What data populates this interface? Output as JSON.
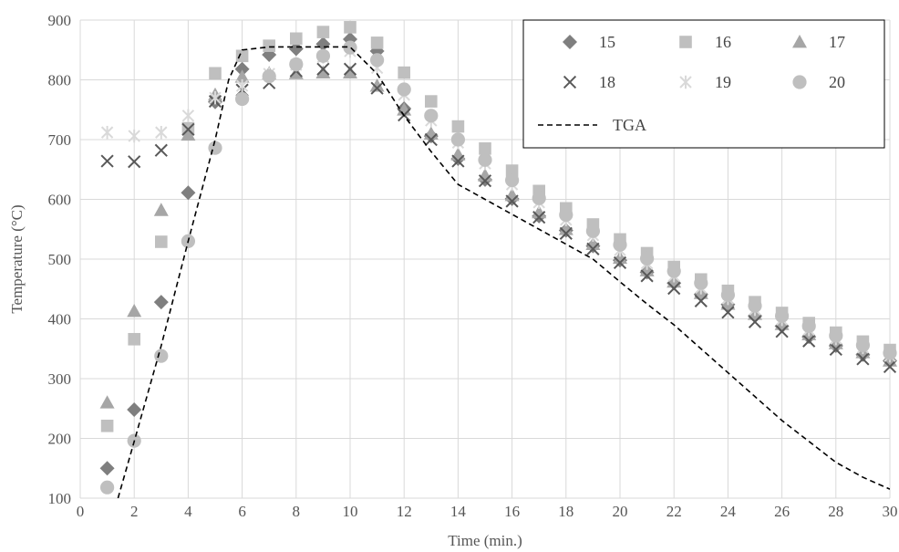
{
  "chart_data": {
    "type": "scatter",
    "title": "",
    "xlabel": "Time (min.)",
    "ylabel": "Temperature (°C)",
    "xlim": [
      0,
      30
    ],
    "ylim": [
      100,
      900
    ],
    "x_ticks": [
      0,
      2,
      4,
      6,
      8,
      10,
      12,
      14,
      16,
      18,
      20,
      22,
      24,
      26,
      28,
      30
    ],
    "y_ticks": [
      100,
      200,
      300,
      400,
      500,
      600,
      700,
      800,
      900
    ],
    "grid": true,
    "legend_position": "top-right",
    "series": [
      {
        "name": "15",
        "marker": "diamond",
        "color": "#7f7f7f",
        "x": [
          1,
          2,
          3,
          4,
          5,
          6,
          7,
          8,
          9,
          10,
          11,
          12,
          13,
          14,
          15,
          16,
          17,
          18,
          19,
          20,
          21,
          22,
          23,
          24,
          25,
          26,
          27,
          28,
          29,
          30
        ],
        "y": [
          150,
          248,
          428,
          611,
          763,
          818,
          842,
          852,
          860,
          868,
          848,
          752,
          706,
          668,
          633,
          601,
          572,
          548,
          522,
          498,
          478,
          460,
          441,
          424,
          405,
          388,
          370,
          355,
          340,
          330
        ]
      },
      {
        "name": "16",
        "marker": "square",
        "color": "#bfbfbf",
        "x": [
          1,
          2,
          3,
          4,
          5,
          6,
          7,
          8,
          9,
          10,
          11,
          12,
          13,
          14,
          15,
          16,
          17,
          18,
          19,
          20,
          21,
          22,
          23,
          24,
          25,
          26,
          27,
          28,
          29,
          30
        ],
        "y": [
          221,
          366,
          529,
          719,
          811,
          840,
          857,
          869,
          880,
          888,
          862,
          812,
          764,
          722,
          685,
          648,
          614,
          585,
          558,
          533,
          510,
          487,
          466,
          447,
          428,
          410,
          393,
          377,
          362,
          348
        ]
      },
      {
        "name": "17",
        "marker": "triangle",
        "color": "#a6a6a6",
        "x": [
          1,
          2,
          3,
          4,
          5,
          6,
          7,
          8,
          9,
          10,
          11,
          12,
          13,
          14,
          15,
          16,
          17,
          18,
          19,
          20,
          21,
          22,
          23,
          24,
          25,
          26,
          27,
          28,
          29,
          30
        ],
        "y": [
          260,
          413,
          582,
          708,
          775,
          805,
          811,
          811,
          812,
          812,
          790,
          750,
          710,
          675,
          640,
          607,
          578,
          550,
          525,
          502,
          481,
          462,
          443,
          425,
          408,
          391,
          374,
          359,
          344,
          330
        ]
      },
      {
        "name": "18",
        "marker": "x",
        "color": "#595959",
        "x": [
          1,
          2,
          3,
          4,
          5,
          6,
          7,
          8,
          9,
          10,
          11,
          12,
          13,
          14,
          15,
          16,
          17,
          18,
          19,
          20,
          21,
          22,
          23,
          24,
          25,
          26,
          27,
          28,
          29,
          30
        ],
        "y": [
          664,
          663,
          682,
          717,
          764,
          783,
          795,
          815,
          818,
          818,
          786,
          741,
          700,
          664,
          631,
          597,
          570,
          543,
          517,
          494,
          472,
          451,
          430,
          411,
          395,
          379,
          363,
          349,
          333,
          320
        ]
      },
      {
        "name": "19",
        "marker": "star",
        "color": "#d9d9d9",
        "x": [
          1,
          2,
          3,
          4,
          5,
          6,
          7,
          8,
          9,
          10,
          11,
          12,
          13,
          14,
          15,
          16,
          17,
          18,
          19,
          20,
          21,
          22,
          23,
          24,
          25,
          26,
          27,
          28,
          29,
          30
        ],
        "y": [
          712,
          706,
          712,
          740,
          770,
          790,
          810,
          825,
          838,
          848,
          820,
          775,
          732,
          695,
          660,
          625,
          595,
          566,
          540,
          515,
          493,
          472,
          452,
          434,
          416,
          399,
          382,
          367,
          352,
          338
        ]
      },
      {
        "name": "20",
        "marker": "circle",
        "color": "#bfbfbf",
        "x": [
          1,
          2,
          3,
          4,
          5,
          6,
          7,
          8,
          9,
          10,
          11,
          12,
          13,
          14,
          15,
          16,
          17,
          18,
          19,
          20,
          21,
          22,
          23,
          24,
          25,
          26,
          27,
          28,
          29,
          30
        ],
        "y": [
          118,
          196,
          338,
          530,
          686,
          768,
          806,
          826,
          840,
          854,
          833,
          784,
          740,
          700,
          666,
          632,
          602,
          574,
          547,
          524,
          501,
          480,
          460,
          440,
          422,
          405,
          388,
          372,
          356,
          343
        ]
      }
    ],
    "reference_line": {
      "name": "TGA",
      "style": "dashed",
      "color": "#000000",
      "x": [
        1.4,
        2,
        3,
        4,
        5,
        5.5,
        6,
        7,
        8,
        9,
        10,
        11,
        12,
        13,
        14,
        15,
        16,
        17,
        18,
        19,
        20,
        21,
        22,
        23,
        24,
        25,
        26,
        27,
        28,
        29,
        30
      ],
      "y": [
        100,
        195,
        355,
        530,
        700,
        800,
        850,
        855,
        855,
        855,
        855,
        810,
        740,
        680,
        625,
        600,
        575,
        550,
        525,
        500,
        462,
        425,
        390,
        350,
        310,
        270,
        230,
        195,
        160,
        135,
        115
      ]
    }
  }
}
